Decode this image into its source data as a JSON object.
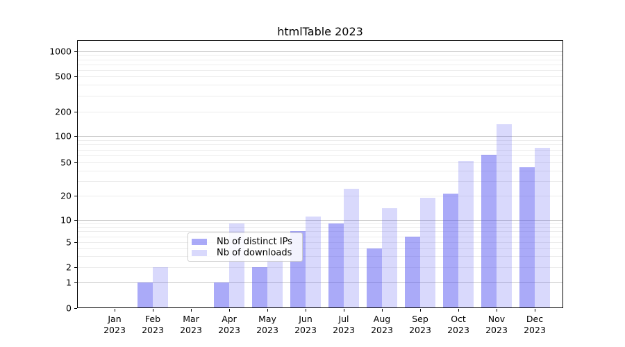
{
  "chart_data": {
    "type": "bar",
    "title": "htmlTable 2023",
    "categories": [
      "Jan 2023",
      "Feb 2023",
      "Mar 2023",
      "Apr 2023",
      "May 2023",
      "Jun 2023",
      "Jul 2023",
      "Aug 2023",
      "Sep 2023",
      "Oct 2023",
      "Nov 2023",
      "Dec 2023"
    ],
    "series": [
      {
        "name": "Nb of distinct IPs",
        "color": "rgba(77,77,240,0.48)",
        "values": [
          0,
          1,
          0,
          1,
          2,
          7,
          9,
          4,
          6,
          21,
          61,
          44
        ]
      },
      {
        "name": "Nb of downloads",
        "color": "rgba(77,77,240,0.21)",
        "values": [
          0,
          2,
          0,
          9,
          3,
          11,
          24,
          14,
          19,
          52,
          140,
          73
        ]
      }
    ],
    "xlabel": "",
    "ylabel": "",
    "y_axis": {
      "scale": "log-like",
      "ticks": [
        0,
        1,
        2,
        5,
        10,
        20,
        50,
        100,
        200,
        500,
        1000
      ],
      "major_gridlines": [
        1,
        10,
        100,
        1000
      ],
      "range": [
        0,
        1200
      ]
    },
    "legend_position": "lower center",
    "grid": "horizontal"
  },
  "colors": {
    "bar_distinct_ips": "rgba(77,77,240,0.48)",
    "bar_downloads": "rgba(77,77,240,0.21)",
    "grid_major": "#c6c6c6",
    "grid_minor": "#ececec",
    "spine": "#000000",
    "legend_border": "#cccccc"
  }
}
